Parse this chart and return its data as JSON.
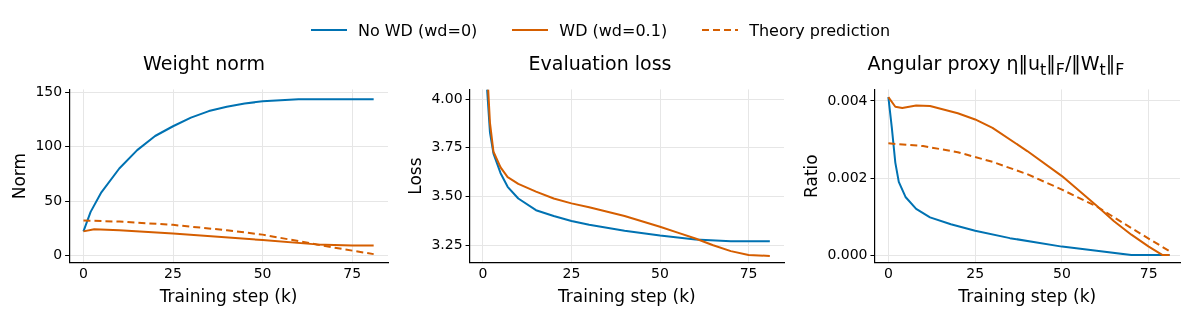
{
  "chart_data": [
    {
      "type": "line",
      "title": "Weight norm",
      "xlabel": "Training step (k)",
      "ylabel": "Norm",
      "legend": "top",
      "grid": true,
      "xlim": [
        -4,
        85
      ],
      "xticks": [
        0,
        25,
        50,
        75
      ],
      "ylim": [
        -7,
        153
      ],
      "yticks": [
        0,
        50,
        100,
        150
      ],
      "series": [
        {
          "name": "No WD (wd=0)",
          "color": "#0072b2",
          "line_style": "solid",
          "x": [
            0,
            2,
            5,
            10,
            15,
            20,
            25,
            30,
            35,
            40,
            45,
            50,
            55,
            60,
            70,
            81
          ],
          "values": [
            22,
            40,
            58,
            80,
            97,
            110,
            119,
            127,
            133,
            137,
            140,
            142,
            143,
            144,
            144,
            144
          ]
        },
        {
          "name": "WD (wd=0.1)",
          "color": "#d55e00",
          "line_style": "solid",
          "x": [
            0,
            3,
            10,
            25,
            50,
            65,
            75,
            81
          ],
          "values": [
            22,
            24,
            23,
            20,
            14,
            10,
            9,
            9
          ]
        },
        {
          "name": "Theory prediction",
          "color": "#d55e00",
          "line_style": "dashed",
          "x": [
            0,
            10,
            25,
            40,
            50,
            60,
            70,
            81
          ],
          "values": [
            32,
            31,
            28,
            23,
            19,
            13,
            7,
            1
          ]
        }
      ]
    },
    {
      "type": "line",
      "title": "Evaluation loss",
      "xlabel": "Training step (k)",
      "ylabel": "Loss",
      "grid": true,
      "xlim": [
        -3.75,
        85
      ],
      "xticks": [
        0,
        25,
        50,
        75
      ],
      "ylim": [
        3.16,
        4.05
      ],
      "yticks": [
        {
          "value": 3.25,
          "label": "3.25"
        },
        {
          "value": 3.5,
          "label": "3.50"
        },
        {
          "value": 3.75,
          "label": "3.75"
        },
        {
          "value": 4,
          "label": "4.00"
        }
      ],
      "series": [
        {
          "color": "#0072b2",
          "line_style": "solid",
          "x": [
            1.2,
            2,
            3,
            5,
            7,
            10,
            15,
            20,
            25,
            30,
            40,
            50,
            60,
            70,
            81
          ],
          "values": [
            4.05,
            3.83,
            3.72,
            3.62,
            3.55,
            3.49,
            3.43,
            3.4,
            3.375,
            3.355,
            3.325,
            3.3,
            3.28,
            3.27,
            3.27
          ]
        },
        {
          "color": "#d55e00",
          "line_style": "solid",
          "x": [
            1.5,
            2,
            3,
            5,
            7,
            10,
            15,
            20,
            25,
            30,
            40,
            50,
            55,
            60,
            65,
            70,
            75,
            81
          ],
          "values": [
            4.05,
            3.88,
            3.73,
            3.65,
            3.6,
            3.565,
            3.525,
            3.49,
            3.465,
            3.445,
            3.4,
            3.345,
            3.315,
            3.285,
            3.25,
            3.22,
            3.2,
            3.195
          ]
        }
      ]
    },
    {
      "type": "line",
      "title": "Angular proxy η‖u$_{t}$‖$_{F}$/‖W$_{t}$‖$_{F}$",
      "xlabel": "Training step (k)",
      "ylabel": "Ratio",
      "grid": true,
      "xlim": [
        -4,
        84
      ],
      "xticks": [
        0,
        25,
        50,
        75
      ],
      "ylim": [
        -0.0002,
        0.0043
      ],
      "yticks": [
        {
          "value": 0,
          "label": "0.000"
        },
        {
          "value": 0.002,
          "label": "0.002"
        },
        {
          "value": 0.004,
          "label": "0.004"
        }
      ],
      "series": [
        {
          "color": "#0072b2",
          "line_style": "solid",
          "x": [
            0,
            1,
            2,
            3,
            5,
            8,
            12,
            18,
            25,
            35,
            50,
            60,
            70,
            81
          ],
          "values": [
            0.0041,
            0.0033,
            0.0024,
            0.0019,
            0.0015,
            0.0012,
            0.00098,
            0.0008,
            0.00063,
            0.00044,
            0.00022,
            0.00011,
            0,
            0
          ]
        },
        {
          "color": "#d55e00",
          "line_style": "solid",
          "x": [
            0,
            2,
            4,
            8,
            12,
            20,
            25,
            30,
            40,
            50,
            60,
            65,
            70,
            75,
            79,
            81
          ],
          "values": [
            0.0041,
            0.00385,
            0.00382,
            0.00388,
            0.00387,
            0.00368,
            0.00352,
            0.0033,
            0.0027,
            0.00205,
            0.00128,
            0.00088,
            0.00053,
            0.00022,
            0,
            0
          ]
        },
        {
          "color": "#d55e00",
          "line_style": "dashed",
          "x": [
            0,
            10,
            20,
            30,
            40,
            50,
            60,
            70,
            81
          ],
          "values": [
            0.0029,
            0.00283,
            0.00267,
            0.00242,
            0.0021,
            0.0017,
            0.00126,
            0.0007,
            0.0001
          ]
        }
      ]
    }
  ]
}
